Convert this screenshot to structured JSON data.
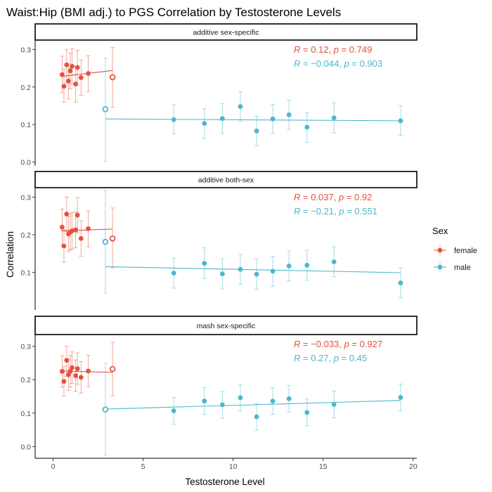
{
  "chart_data": {
    "type": "scatter",
    "title": "Waist:Hip (BMI adj.) to PGS Correlation by Testosterone Levels",
    "xlabel": "Testosterone Level",
    "ylabel": "Correlation",
    "xlim": [
      -1,
      20.2
    ],
    "x_ticks": [
      0,
      5,
      10,
      15,
      20
    ],
    "x_tick_labels": [
      "0",
      "5",
      "10",
      "15",
      "20"
    ],
    "colors": {
      "female": "#e4513c",
      "male": "#4ab8cc"
    },
    "legend": {
      "title": "Sex",
      "position": "right",
      "entries": [
        "female",
        "male"
      ]
    },
    "panels": [
      {
        "label": "additive sex-specific",
        "ylim": [
          -0.01,
          0.325
        ],
        "y_ticks": [
          0.0,
          0.1,
          0.2,
          0.3
        ],
        "y_tick_labels": [
          "0.0",
          "0.1",
          "0.2",
          "0.3"
        ],
        "stats": [
          {
            "series": "female",
            "R": "0.12",
            "p": "0.749"
          },
          {
            "series": "male",
            "R": "−0.044",
            "p": "0.903"
          }
        ],
        "series": [
          {
            "name": "female",
            "points": [
              {
                "x": 0.5,
                "y": 0.233,
                "lo": 0.185,
                "hi": 0.282
              },
              {
                "x": 0.6,
                "y": 0.202,
                "lo": 0.16,
                "hi": 0.248
              },
              {
                "x": 0.75,
                "y": 0.259,
                "lo": 0.21,
                "hi": 0.3
              },
              {
                "x": 0.85,
                "y": 0.216,
                "lo": 0.168,
                "hi": 0.262
              },
              {
                "x": 0.95,
                "y": 0.243,
                "lo": 0.195,
                "hi": 0.29
              },
              {
                "x": 1.05,
                "y": 0.255,
                "lo": 0.208,
                "hi": 0.302
              },
              {
                "x": 1.25,
                "y": 0.208,
                "lo": 0.16,
                "hi": 0.256
              },
              {
                "x": 1.35,
                "y": 0.252,
                "lo": 0.205,
                "hi": 0.298
              },
              {
                "x": 1.55,
                "y": 0.225,
                "lo": 0.178,
                "hi": 0.272
              },
              {
                "x": 1.95,
                "y": 0.236,
                "lo": 0.188,
                "hi": 0.283
              },
              {
                "x": 3.3,
                "y": 0.226,
                "lo": 0.146,
                "hi": 0.305,
                "open": true
              }
            ],
            "fit": [
              [
                0.45,
                0.228
              ],
              [
                3.3,
                0.244
              ]
            ]
          },
          {
            "name": "male",
            "points": [
              {
                "x": 2.9,
                "y": 0.141,
                "lo": 0.002,
                "hi": 0.277,
                "open": true
              },
              {
                "x": 6.7,
                "y": 0.113,
                "lo": 0.075,
                "hi": 0.153
              },
              {
                "x": 8.4,
                "y": 0.103,
                "lo": 0.063,
                "hi": 0.142
              },
              {
                "x": 9.4,
                "y": 0.116,
                "lo": 0.077,
                "hi": 0.156
              },
              {
                "x": 10.4,
                "y": 0.148,
                "lo": 0.108,
                "hi": 0.188
              },
              {
                "x": 11.3,
                "y": 0.083,
                "lo": 0.043,
                "hi": 0.122
              },
              {
                "x": 12.2,
                "y": 0.115,
                "lo": 0.076,
                "hi": 0.154
              },
              {
                "x": 13.1,
                "y": 0.126,
                "lo": 0.087,
                "hi": 0.165
              },
              {
                "x": 14.1,
                "y": 0.093,
                "lo": 0.053,
                "hi": 0.132
              },
              {
                "x": 15.6,
                "y": 0.118,
                "lo": 0.078,
                "hi": 0.158
              },
              {
                "x": 19.3,
                "y": 0.11,
                "lo": 0.071,
                "hi": 0.15
              }
            ],
            "fit": [
              [
                2.9,
                0.115
              ],
              [
                19.3,
                0.11
              ]
            ]
          }
        ]
      },
      {
        "label": "additive both-sex",
        "ylim": [
          0.0,
          0.325
        ],
        "y_ticks": [
          0.1,
          0.2,
          0.3
        ],
        "y_tick_labels": [
          "0.1",
          "0.2",
          "0.3"
        ],
        "stats": [
          {
            "series": "female",
            "R": "0.037",
            "p": "0.92"
          },
          {
            "series": "male",
            "R": "−0.21",
            "p": "0.551"
          }
        ],
        "series": [
          {
            "name": "female",
            "points": [
              {
                "x": 0.5,
                "y": 0.22,
                "lo": 0.172,
                "hi": 0.268
              },
              {
                "x": 0.6,
                "y": 0.17,
                "lo": 0.127,
                "hi": 0.213
              },
              {
                "x": 0.75,
                "y": 0.255,
                "lo": 0.208,
                "hi": 0.3
              },
              {
                "x": 0.85,
                "y": 0.202,
                "lo": 0.156,
                "hi": 0.249
              },
              {
                "x": 0.95,
                "y": 0.207,
                "lo": 0.16,
                "hi": 0.255
              },
              {
                "x": 1.05,
                "y": 0.21,
                "lo": 0.162,
                "hi": 0.259
              },
              {
                "x": 1.25,
                "y": 0.213,
                "lo": 0.165,
                "hi": 0.261
              },
              {
                "x": 1.35,
                "y": 0.252,
                "lo": 0.205,
                "hi": 0.298
              },
              {
                "x": 1.55,
                "y": 0.19,
                "lo": 0.143,
                "hi": 0.237
              },
              {
                "x": 1.95,
                "y": 0.216,
                "lo": 0.168,
                "hi": 0.263
              },
              {
                "x": 3.3,
                "y": 0.19,
                "lo": 0.112,
                "hi": 0.271,
                "open": true
              }
            ],
            "fit": [
              [
                0.45,
                0.21
              ],
              [
                3.3,
                0.215
              ]
            ]
          },
          {
            "name": "male",
            "points": [
              {
                "x": 2.9,
                "y": 0.181,
                "lo": 0.045,
                "hi": 0.317,
                "open": true
              },
              {
                "x": 6.7,
                "y": 0.098,
                "lo": 0.058,
                "hi": 0.138
              },
              {
                "x": 8.4,
                "y": 0.124,
                "lo": 0.084,
                "hi": 0.165
              },
              {
                "x": 9.4,
                "y": 0.096,
                "lo": 0.056,
                "hi": 0.136
              },
              {
                "x": 10.4,
                "y": 0.108,
                "lo": 0.068,
                "hi": 0.148
              },
              {
                "x": 11.3,
                "y": 0.095,
                "lo": 0.055,
                "hi": 0.135
              },
              {
                "x": 12.2,
                "y": 0.103,
                "lo": 0.063,
                "hi": 0.143
              },
              {
                "x": 13.1,
                "y": 0.117,
                "lo": 0.077,
                "hi": 0.157
              },
              {
                "x": 14.1,
                "y": 0.119,
                "lo": 0.079,
                "hi": 0.159
              },
              {
                "x": 15.6,
                "y": 0.128,
                "lo": 0.088,
                "hi": 0.168
              },
              {
                "x": 19.3,
                "y": 0.072,
                "lo": 0.032,
                "hi": 0.112
              }
            ],
            "fit": [
              [
                2.9,
                0.115
              ],
              [
                19.3,
                0.099
              ]
            ]
          }
        ]
      },
      {
        "label": "mash sex-specific",
        "ylim": [
          -0.035,
          0.335
        ],
        "y_ticks": [
          0.0,
          0.1,
          0.2,
          0.3
        ],
        "y_tick_labels": [
          "0.0",
          "0.1",
          "0.2",
          "0.3"
        ],
        "stats": [
          {
            "series": "female",
            "R": "−0.033",
            "p": "0.927"
          },
          {
            "series": "male",
            "R": "0.27",
            "p": "0.45"
          }
        ],
        "series": [
          {
            "name": "female",
            "points": [
              {
                "x": 0.5,
                "y": 0.225,
                "lo": 0.178,
                "hi": 0.272
              },
              {
                "x": 0.6,
                "y": 0.195,
                "lo": 0.152,
                "hi": 0.24
              },
              {
                "x": 0.75,
                "y": 0.258,
                "lo": 0.21,
                "hi": 0.3
              },
              {
                "x": 0.85,
                "y": 0.215,
                "lo": 0.168,
                "hi": 0.262
              },
              {
                "x": 0.95,
                "y": 0.225,
                "lo": 0.178,
                "hi": 0.272
              },
              {
                "x": 1.05,
                "y": 0.236,
                "lo": 0.189,
                "hi": 0.283
              },
              {
                "x": 1.25,
                "y": 0.212,
                "lo": 0.165,
                "hi": 0.259
              },
              {
                "x": 1.35,
                "y": 0.233,
                "lo": 0.186,
                "hi": 0.28
              },
              {
                "x": 1.55,
                "y": 0.207,
                "lo": 0.16,
                "hi": 0.254
              },
              {
                "x": 1.95,
                "y": 0.226,
                "lo": 0.179,
                "hi": 0.273
              },
              {
                "x": 3.3,
                "y": 0.232,
                "lo": 0.152,
                "hi": 0.312,
                "open": true
              }
            ],
            "fit": [
              [
                0.45,
                0.226
              ],
              [
                3.3,
                0.222
              ]
            ]
          },
          {
            "name": "male",
            "points": [
              {
                "x": 2.9,
                "y": 0.111,
                "lo": -0.025,
                "hi": 0.249,
                "open": true
              },
              {
                "x": 6.7,
                "y": 0.107,
                "lo": 0.067,
                "hi": 0.147
              },
              {
                "x": 8.4,
                "y": 0.136,
                "lo": 0.096,
                "hi": 0.176
              },
              {
                "x": 9.4,
                "y": 0.125,
                "lo": 0.085,
                "hi": 0.165
              },
              {
                "x": 10.4,
                "y": 0.146,
                "lo": 0.106,
                "hi": 0.186
              },
              {
                "x": 11.3,
                "y": 0.089,
                "lo": 0.049,
                "hi": 0.129
              },
              {
                "x": 12.2,
                "y": 0.136,
                "lo": 0.096,
                "hi": 0.176
              },
              {
                "x": 13.1,
                "y": 0.143,
                "lo": 0.103,
                "hi": 0.183
              },
              {
                "x": 14.1,
                "y": 0.102,
                "lo": 0.062,
                "hi": 0.142
              },
              {
                "x": 15.6,
                "y": 0.126,
                "lo": 0.086,
                "hi": 0.166
              },
              {
                "x": 19.3,
                "y": 0.147,
                "lo": 0.107,
                "hi": 0.187
              }
            ],
            "fit": [
              [
                2.9,
                0.112
              ],
              [
                19.3,
                0.138
              ]
            ]
          }
        ]
      }
    ]
  }
}
